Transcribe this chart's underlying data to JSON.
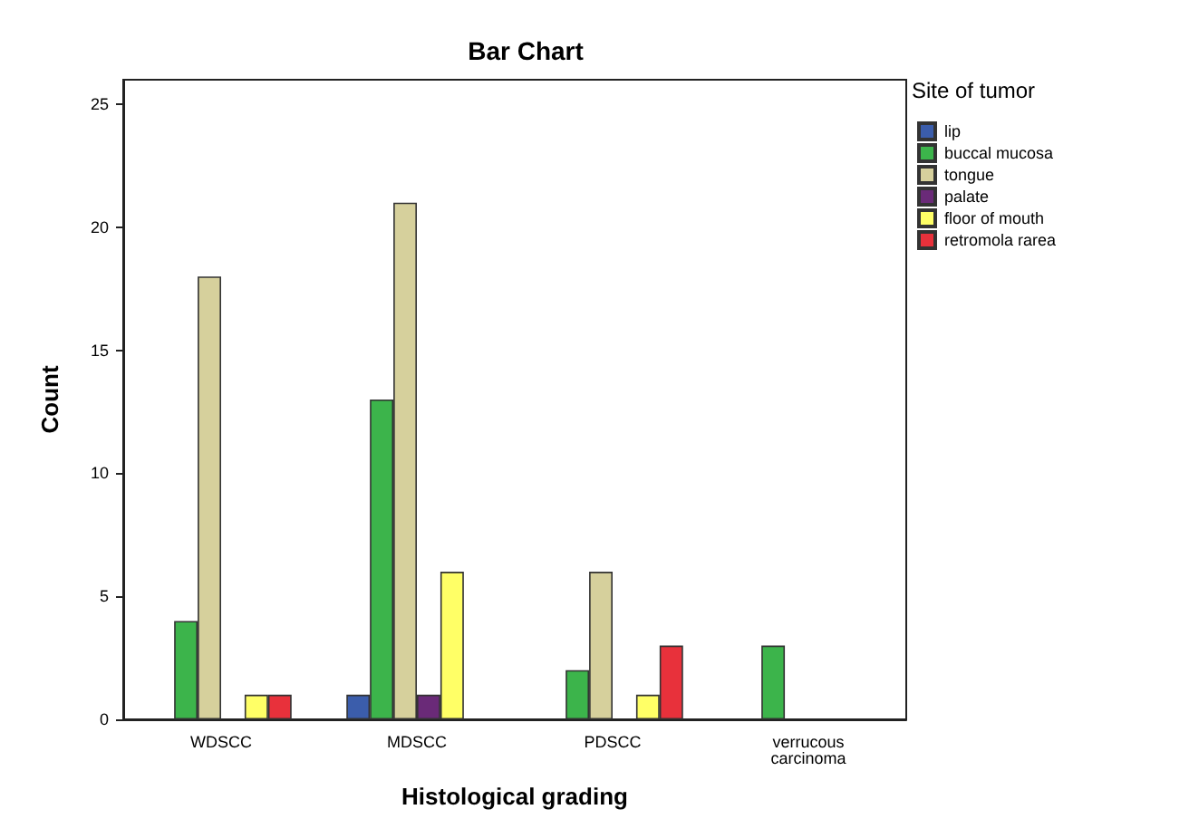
{
  "chart_data": {
    "type": "bar",
    "title": "Bar Chart",
    "xlabel": "Histological grading",
    "ylabel": "Count",
    "legend_title": "Site of tumor",
    "categories": [
      "WDSCC",
      "MDSCC",
      "PDSCC",
      "verrucous carcinoma"
    ],
    "series": [
      {
        "name": "lip",
        "color": "#3b5dab",
        "values": [
          null,
          1,
          null,
          null
        ]
      },
      {
        "name": "buccal mucosa",
        "color": "#3cb44b",
        "values": [
          4,
          13,
          2,
          3
        ]
      },
      {
        "name": "tongue",
        "color": "#d6d09c",
        "values": [
          18,
          21,
          6,
          null
        ]
      },
      {
        "name": "palate",
        "color": "#6a2a78",
        "values": [
          null,
          1,
          null,
          null
        ]
      },
      {
        "name": "floor of mouth",
        "color": "#ffff66",
        "values": [
          1,
          6,
          1,
          null
        ]
      },
      {
        "name": "retromola rarea",
        "color": "#e8313b",
        "values": [
          1,
          null,
          3,
          null
        ]
      }
    ],
    "ylim": [
      0,
      26
    ],
    "yticks": [
      0,
      5,
      10,
      15,
      20,
      25
    ],
    "grid": false,
    "legend": "right"
  }
}
